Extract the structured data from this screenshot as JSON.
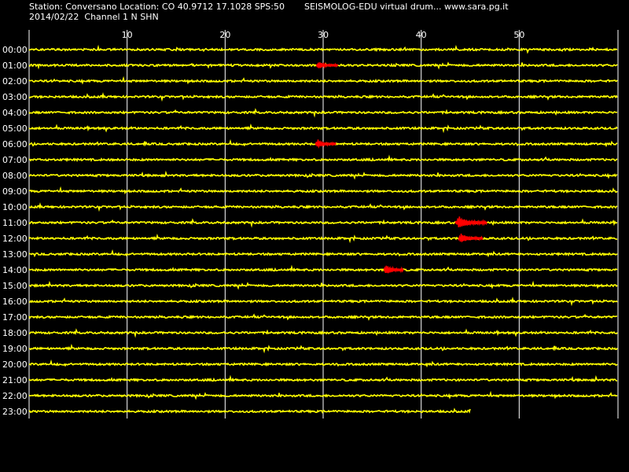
{
  "header": {
    "station_line": "Station: Conversano Location: CO 40.9712 17.1028 SPS:50",
    "program_line": "SEISMOLOG-EDU virtual drum... www.sara.pg.it",
    "date_line": "2014/02/22  Channel 1 N SHN"
  },
  "colors": {
    "background": "#000000",
    "trace": "#ffff00",
    "event": "#ff0000",
    "grid": "#ffffff",
    "text": "#ffffff"
  },
  "minute_axis": {
    "min": 0,
    "max": 60,
    "tick_values": [
      10,
      20,
      30,
      40,
      50
    ],
    "tick_labels": [
      "10",
      "20",
      "30",
      "40",
      "50"
    ]
  },
  "hours": [
    {
      "label": "00:00",
      "end_minute": 60,
      "events": []
    },
    {
      "label": "01:00",
      "end_minute": 60,
      "events": [
        {
          "start_minute": 29.3,
          "end_minute": 31.5,
          "strength": 0.45
        }
      ]
    },
    {
      "label": "02:00",
      "end_minute": 60,
      "events": []
    },
    {
      "label": "03:00",
      "end_minute": 60,
      "events": []
    },
    {
      "label": "04:00",
      "end_minute": 60,
      "events": []
    },
    {
      "label": "05:00",
      "end_minute": 60,
      "events": []
    },
    {
      "label": "06:00",
      "end_minute": 60,
      "events": [
        {
          "start_minute": 29.2,
          "end_minute": 31.3,
          "strength": 0.5
        }
      ]
    },
    {
      "label": "07:00",
      "end_minute": 60,
      "events": []
    },
    {
      "label": "08:00",
      "end_minute": 60,
      "events": []
    },
    {
      "label": "09:00",
      "end_minute": 60,
      "events": []
    },
    {
      "label": "10:00",
      "end_minute": 60,
      "events": []
    },
    {
      "label": "11:00",
      "end_minute": 60,
      "events": [
        {
          "start_minute": 43.5,
          "end_minute": 46.7,
          "strength": 1.0
        }
      ]
    },
    {
      "label": "12:00",
      "end_minute": 60,
      "events": [
        {
          "start_minute": 43.8,
          "end_minute": 46.3,
          "strength": 0.6
        }
      ]
    },
    {
      "label": "13:00",
      "end_minute": 60,
      "events": []
    },
    {
      "label": "14:00",
      "end_minute": 60,
      "events": [
        {
          "start_minute": 36.2,
          "end_minute": 38.2,
          "strength": 0.7
        }
      ]
    },
    {
      "label": "15:00",
      "end_minute": 60,
      "events": []
    },
    {
      "label": "16:00",
      "end_minute": 60,
      "events": []
    },
    {
      "label": "17:00",
      "end_minute": 60,
      "events": []
    },
    {
      "label": "18:00",
      "end_minute": 60,
      "events": []
    },
    {
      "label": "19:00",
      "end_minute": 60,
      "events": []
    },
    {
      "label": "20:00",
      "end_minute": 60,
      "events": []
    },
    {
      "label": "21:00",
      "end_minute": 60,
      "events": []
    },
    {
      "label": "22:00",
      "end_minute": 60,
      "events": []
    },
    {
      "label": "23:00",
      "end_minute": 45,
      "events": []
    }
  ]
}
